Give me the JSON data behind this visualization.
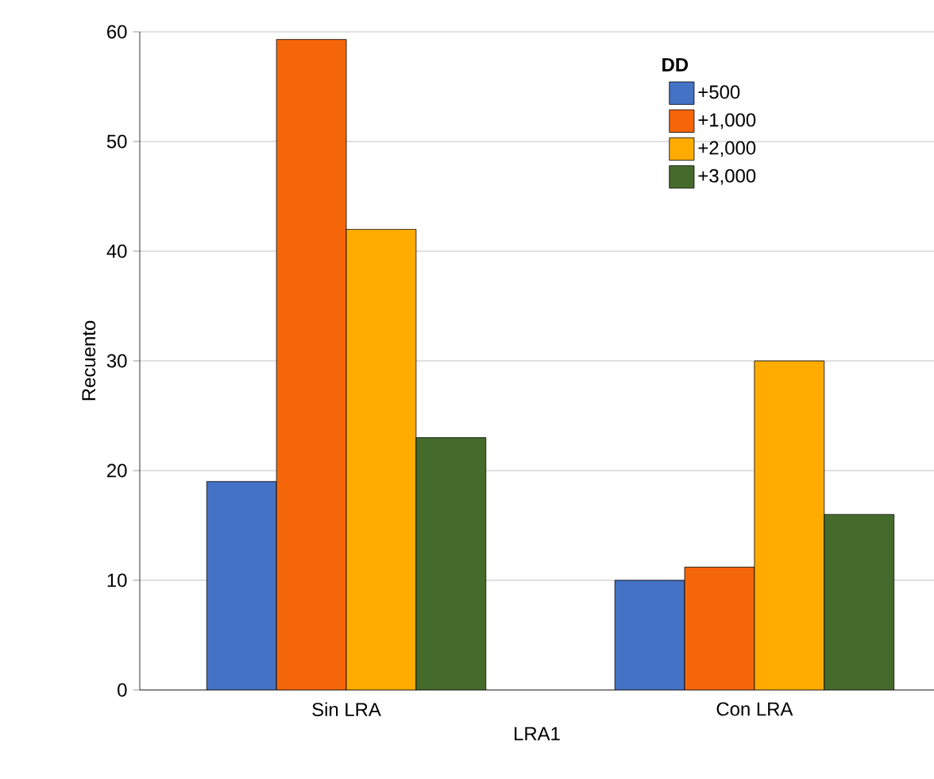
{
  "chart_data": {
    "type": "bar",
    "xlabel": "LRA1",
    "ylabel": "Recuento",
    "legend_title": "DD",
    "categories": [
      "Sin LRA",
      "Con LRA"
    ],
    "series": [
      {
        "name": "+500",
        "color": "#4472c4",
        "values": [
          19,
          10
        ]
      },
      {
        "name": "+1,000",
        "color": "#f5660a",
        "values": [
          59.3,
          11.2
        ]
      },
      {
        "name": "+2,000",
        "color": "#ffab00",
        "values": [
          42,
          30
        ]
      },
      {
        "name": "+3,000",
        "color": "#456b2c",
        "values": [
          23,
          16
        ]
      }
    ],
    "ylim": [
      0,
      60
    ],
    "yticks": [
      0,
      10,
      20,
      30,
      40,
      50,
      60
    ],
    "grid": "y",
    "legend": "top right"
  }
}
